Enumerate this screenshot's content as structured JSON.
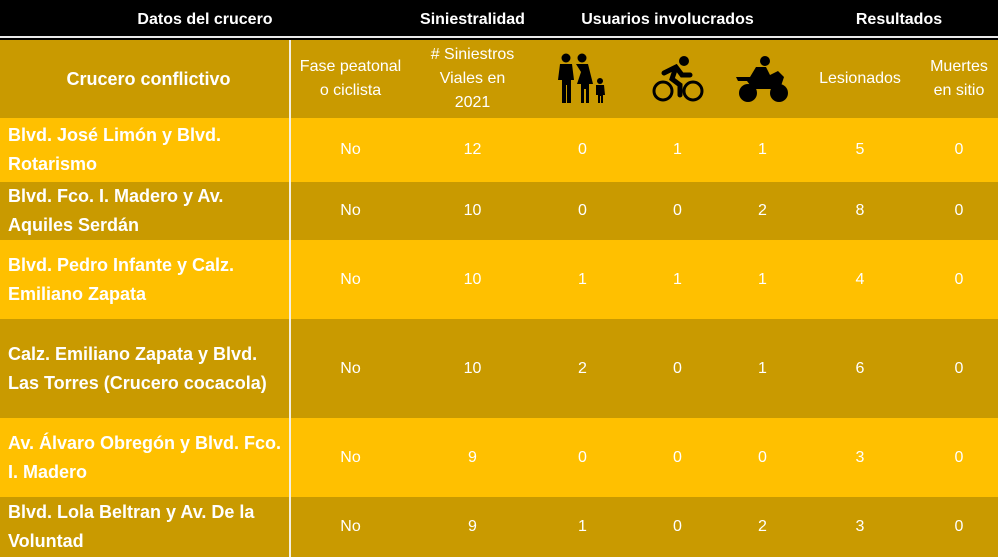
{
  "groups": [
    "Datos del crucero",
    "Siniestralidad",
    "Usuarios involucrados",
    "Resultados"
  ],
  "columns": {
    "crucero": "Crucero conflictivo",
    "fase": "Fase peatonal o ciclista",
    "siniestros": "# Siniestros Viales en 2021",
    "peatones_icon": "family-pedestrian-icon",
    "ciclistas_icon": "cyclist-icon",
    "motos_icon": "motorcycle-icon",
    "lesionados": "Lesionados",
    "muertes": "Muertes en sitio"
  },
  "colors": {
    "header": "#000000",
    "row_light": "#ffc000",
    "row_dark": "#c99a00"
  },
  "rows": [
    {
      "crucero": "Blvd. José Limón y Blvd. Rotarismo",
      "fase": "No",
      "siniestros": "12",
      "peatones": "0",
      "ciclistas": "1",
      "motos": "1",
      "lesionados": "5",
      "muertes": "0"
    },
    {
      "crucero": "Blvd. Fco. I. Madero y Av. Aquiles Serdán",
      "fase": "No",
      "siniestros": "10",
      "peatones": "0",
      "ciclistas": "0",
      "motos": "2",
      "lesionados": "8",
      "muertes": "0"
    },
    {
      "crucero": "Blvd. Pedro Infante y Calz. Emiliano Zapata",
      "fase": "No",
      "siniestros": "10",
      "peatones": "1",
      "ciclistas": "1",
      "motos": "1",
      "lesionados": "4",
      "muertes": "0"
    },
    {
      "crucero": "Calz. Emiliano Zapata y Blvd. Las Torres (Crucero cocacola)",
      "fase": "No",
      "siniestros": "10",
      "peatones": "2",
      "ciclistas": "0",
      "motos": "1",
      "lesionados": "6",
      "muertes": "0"
    },
    {
      "crucero": "Av. Álvaro Obregón y Blvd. Fco. I. Madero",
      "fase": "No",
      "siniestros": "9",
      "peatones": "0",
      "ciclistas": "0",
      "motos": "0",
      "lesionados": "3",
      "muertes": "0"
    },
    {
      "crucero": "Blvd. Lola Beltran y Av. De la Voluntad",
      "fase": "No",
      "siniestros": "9",
      "peatones": "1",
      "ciclistas": "0",
      "motos": "2",
      "lesionados": "3",
      "muertes": "0"
    }
  ]
}
